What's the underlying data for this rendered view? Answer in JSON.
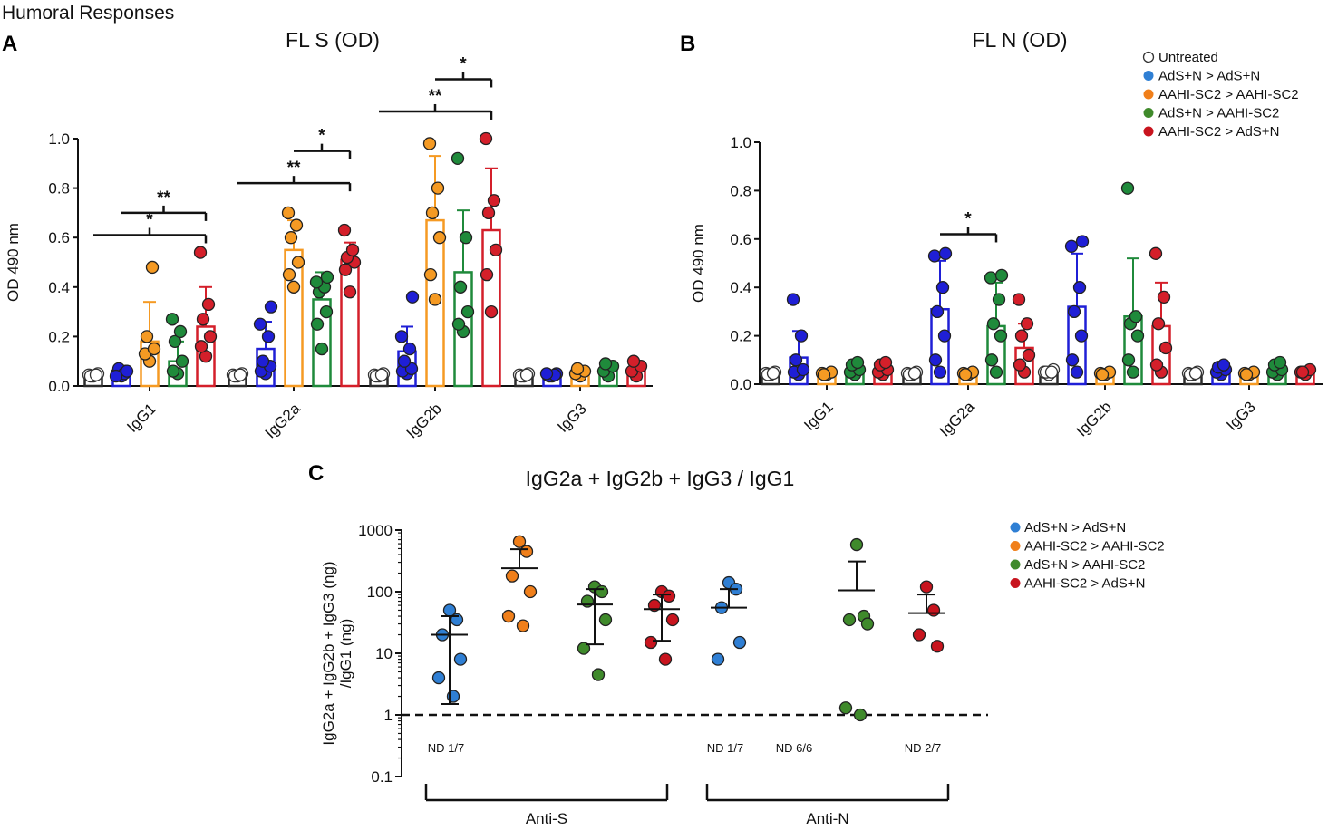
{
  "figure": {
    "super_title": "Humoral Responses"
  },
  "colors": {
    "Untreated": "#2b2b2b",
    "AdS+N > AdS+N": "#1f1fd6",
    "AAHI-SC2 > AAHI-SC2": "#f59a23",
    "AdS+N > AAHI-SC2": "#1f8a3b",
    "AAHI-SC2 > AdS+N": "#d41f2a"
  },
  "legend_colors": {
    "Untreated": "#ffffff",
    "AdS+N > AdS+N": "#2f7fd4",
    "AAHI-SC2 > AAHI-SC2": "#f07f1a",
    "AdS+N > AAHI-SC2": "#3f8a2b",
    "AAHI-SC2 > AdS+N": "#c8141e"
  },
  "chart_data": [
    {
      "id": "A",
      "panel_label": "A",
      "type": "bar",
      "title": "FL S (OD)",
      "ylabel": "OD 490 nm",
      "ylim": [
        0,
        1.0
      ],
      "yticks": [
        "0.0",
        "0.2",
        "0.4",
        "0.6",
        "0.8",
        "1.0"
      ],
      "categories": [
        "IgG1",
        "IgG2a",
        "IgG2b",
        "IgG3"
      ],
      "legend": [],
      "series": [
        {
          "name": "Untreated",
          "means": [
            0.04,
            0.04,
            0.04,
            0.04
          ],
          "sd": [
            0.005,
            0.005,
            0.005,
            0.005
          ],
          "points": [
            [
              0.04,
              0.045,
              0.05,
              0.04,
              0.045
            ],
            [
              0.04,
              0.045,
              0.05,
              0.04,
              0.045
            ],
            [
              0.04,
              0.045,
              0.05,
              0.04,
              0.045
            ],
            [
              0.04,
              0.045,
              0.05,
              0.04,
              0.045
            ]
          ]
        },
        {
          "name": "AdS+N > AdS+N",
          "means": [
            0.05,
            0.15,
            0.14,
            0.045
          ],
          "sd": [
            0.01,
            0.11,
            0.1,
            0.005
          ],
          "points": [
            [
              0.04,
              0.05,
              0.06,
              0.07,
              0.05,
              0.04,
              0.06
            ],
            [
              0.05,
              0.06,
              0.08,
              0.1,
              0.2,
              0.25,
              0.32
            ],
            [
              0.05,
              0.06,
              0.07,
              0.1,
              0.15,
              0.2,
              0.36
            ],
            [
              0.04,
              0.045,
              0.05,
              0.04,
              0.045,
              0.05
            ]
          ]
        },
        {
          "name": "AAHI-SC2 > AAHI-SC2",
          "means": [
            0.18,
            0.55,
            0.67,
            0.05
          ],
          "sd": [
            0.16,
            0.12,
            0.26,
            0.01
          ],
          "points": [
            [
              0.1,
              0.13,
              0.15,
              0.2,
              0.48
            ],
            [
              0.4,
              0.45,
              0.5,
              0.6,
              0.65,
              0.7
            ],
            [
              0.35,
              0.45,
              0.6,
              0.7,
              0.8,
              0.98
            ],
            [
              0.04,
              0.05,
              0.06,
              0.07
            ]
          ]
        },
        {
          "name": "AdS+N > AAHI-SC2",
          "means": [
            0.1,
            0.35,
            0.46,
            0.06
          ],
          "sd": [
            0.08,
            0.11,
            0.25,
            0.02
          ],
          "points": [
            [
              0.05,
              0.06,
              0.1,
              0.18,
              0.22,
              0.27
            ],
            [
              0.15,
              0.25,
              0.3,
              0.38,
              0.4,
              0.42,
              0.44
            ],
            [
              0.22,
              0.25,
              0.3,
              0.4,
              0.6,
              0.92
            ],
            [
              0.04,
              0.06,
              0.08,
              0.09
            ]
          ]
        },
        {
          "name": "AAHI-SC2 > AdS+N",
          "means": [
            0.24,
            0.51,
            0.63,
            0.06
          ],
          "sd": [
            0.16,
            0.07,
            0.25,
            0.02
          ],
          "points": [
            [
              0.12,
              0.16,
              0.2,
              0.27,
              0.33,
              0.54
            ],
            [
              0.38,
              0.47,
              0.5,
              0.52,
              0.55,
              0.63
            ],
            [
              0.3,
              0.45,
              0.55,
              0.7,
              0.75,
              1.0
            ],
            [
              0.04,
              0.06,
              0.08,
              0.1
            ]
          ]
        }
      ],
      "significance": [
        {
          "label": "*",
          "level": 0.61,
          "from": [
            0,
            0
          ],
          "to": [
            0,
            4
          ]
        },
        {
          "label": "**",
          "level": 0.7,
          "from": [
            0,
            1
          ],
          "to": [
            0,
            4
          ]
        },
        {
          "label": "**",
          "level": 0.82,
          "from": [
            1,
            0
          ],
          "to": [
            1,
            4
          ]
        },
        {
          "label": "*",
          "level": 0.95,
          "from": [
            1,
            2
          ],
          "to": [
            1,
            4
          ]
        },
        {
          "label": "**",
          "level": 1.11,
          "from": [
            2,
            0
          ],
          "to": [
            2,
            4
          ]
        },
        {
          "label": "*",
          "level": 1.24,
          "from": [
            2,
            2
          ],
          "to": [
            2,
            4
          ]
        }
      ]
    },
    {
      "id": "B",
      "panel_label": "B",
      "type": "bar",
      "title": "FL N (OD)",
      "ylabel": "OD 490 nm",
      "ylim": [
        0,
        1.0
      ],
      "yticks": [
        "0.0",
        "0.2",
        "0.4",
        "0.6",
        "0.8",
        "1.0"
      ],
      "categories": [
        "IgG1",
        "IgG2a",
        "IgG2b",
        "IgG3"
      ],
      "legend": [
        "Untreated",
        "AdS+N > AdS+N",
        "AAHI-SC2 > AAHI-SC2",
        "AdS+N > AAHI-SC2",
        "AAHI-SC2 > AdS+N"
      ],
      "series": [
        {
          "name": "Untreated",
          "means": [
            0.04,
            0.04,
            0.05,
            0.04
          ],
          "sd": [
            0.005,
            0.005,
            0.01,
            0.005
          ],
          "points": [
            [
              0.04,
              0.045,
              0.05,
              0.04,
              0.045
            ],
            [
              0.04,
              0.045,
              0.05,
              0.04,
              0.045
            ],
            [
              0.04,
              0.05,
              0.06,
              0.05,
              0.05
            ],
            [
              0.04,
              0.045,
              0.05,
              0.04,
              0.045
            ]
          ]
        },
        {
          "name": "AdS+N > AdS+N",
          "means": [
            0.11,
            0.31,
            0.32,
            0.06
          ],
          "sd": [
            0.11,
            0.2,
            0.22,
            0.02
          ],
          "points": [
            [
              0.04,
              0.05,
              0.06,
              0.1,
              0.2,
              0.35
            ],
            [
              0.05,
              0.1,
              0.2,
              0.3,
              0.4,
              0.53,
              0.54
            ],
            [
              0.05,
              0.1,
              0.2,
              0.3,
              0.4,
              0.57,
              0.59
            ],
            [
              0.04,
              0.05,
              0.06,
              0.07,
              0.08
            ]
          ]
        },
        {
          "name": "AAHI-SC2 > AAHI-SC2",
          "means": [
            0.04,
            0.04,
            0.04,
            0.04
          ],
          "sd": [
            0.005,
            0.005,
            0.005,
            0.005
          ],
          "points": [
            [
              0.04,
              0.045,
              0.05,
              0.04
            ],
            [
              0.04,
              0.045,
              0.05,
              0.04
            ],
            [
              0.04,
              0.045,
              0.05,
              0.04
            ],
            [
              0.04,
              0.045,
              0.05,
              0.04
            ]
          ]
        },
        {
          "name": "AdS+N > AAHI-SC2",
          "means": [
            0.05,
            0.24,
            0.28,
            0.06
          ],
          "sd": [
            0.02,
            0.18,
            0.24,
            0.02
          ],
          "points": [
            [
              0.04,
              0.05,
              0.06,
              0.08,
              0.09
            ],
            [
              0.05,
              0.1,
              0.2,
              0.25,
              0.35,
              0.44,
              0.45
            ],
            [
              0.05,
              0.1,
              0.2,
              0.25,
              0.28,
              0.81
            ],
            [
              0.04,
              0.05,
              0.06,
              0.08,
              0.09
            ]
          ]
        },
        {
          "name": "AAHI-SC2 > AdS+N",
          "means": [
            0.05,
            0.15,
            0.24,
            0.05
          ],
          "sd": [
            0.02,
            0.1,
            0.18,
            0.01
          ],
          "points": [
            [
              0.04,
              0.05,
              0.06,
              0.08,
              0.09
            ],
            [
              0.05,
              0.08,
              0.12,
              0.2,
              0.25,
              0.35
            ],
            [
              0.05,
              0.08,
              0.15,
              0.25,
              0.36,
              0.54
            ],
            [
              0.04,
              0.05,
              0.06,
              0.05
            ]
          ]
        }
      ],
      "significance": [
        {
          "label": "*",
          "level": 0.62,
          "from": [
            1,
            1
          ],
          "to": [
            1,
            3
          ]
        }
      ]
    },
    {
      "id": "C",
      "panel_label": "C",
      "type": "scatter",
      "title": "IgG2a + IgG2b + IgG3 / IgG1",
      "ylabel": [
        "IgG2a + IgG2b + IgG3 (ng)",
        "/IgG1 (ng)"
      ],
      "yscale": "log",
      "ylim": [
        0.1,
        1000
      ],
      "yticks": [
        "0.1",
        "1",
        "10",
        "100",
        "1000"
      ],
      "reference_line": 1,
      "legend": [
        "AdS+N > AdS+N",
        "AAHI-SC2 > AAHI-SC2",
        "AdS+N > AAHI-SC2",
        "AAHI-SC2 > AdS+N"
      ],
      "groups": [
        {
          "label": "Anti-S",
          "series": [
            {
              "name": "AdS+N > AdS+N",
              "points": [
                50,
                35,
                20,
                8,
                4,
                2
              ],
              "mean": 20,
              "err": [
                1.5,
                40
              ],
              "nd": "ND 1/7"
            },
            {
              "name": "AAHI-SC2 > AAHI-SC2",
              "points": [
                650,
                450,
                180,
                100,
                40,
                28
              ],
              "mean": 240,
              "err": [
                null,
                490
              ]
            },
            {
              "name": "AdS+N > AAHI-SC2",
              "points": [
                120,
                100,
                70,
                35,
                12,
                4.5
              ],
              "mean": 62,
              "err": [
                14,
                110
              ]
            },
            {
              "name": "AAHI-SC2 > AdS+N",
              "points": [
                100,
                85,
                60,
                35,
                15,
                8
              ],
              "mean": 52,
              "err": [
                16,
                90
              ]
            }
          ]
        },
        {
          "label": "Anti-N",
          "series": [
            {
              "name": "AdS+N > AdS+N",
              "points": [
                140,
                110,
                55,
                15,
                8
              ],
              "mean": 55,
              "err": [
                null,
                110
              ],
              "nd": "ND 1/7"
            },
            {
              "name": "AAHI-SC2 > AAHI-SC2",
              "points": [],
              "mean": null,
              "err": null,
              "nd": "ND 6/6"
            },
            {
              "name": "AdS+N > AAHI-SC2",
              "points": [
                580,
                40,
                35,
                30,
                1.3,
                1.0
              ],
              "mean": 105,
              "err": [
                null,
                310
              ]
            },
            {
              "name": "AAHI-SC2 > AdS+N",
              "points": [
                120,
                50,
                20,
                13
              ],
              "mean": 45,
              "err": [
                null,
                90
              ],
              "nd": "ND 2/7"
            }
          ]
        }
      ]
    }
  ]
}
